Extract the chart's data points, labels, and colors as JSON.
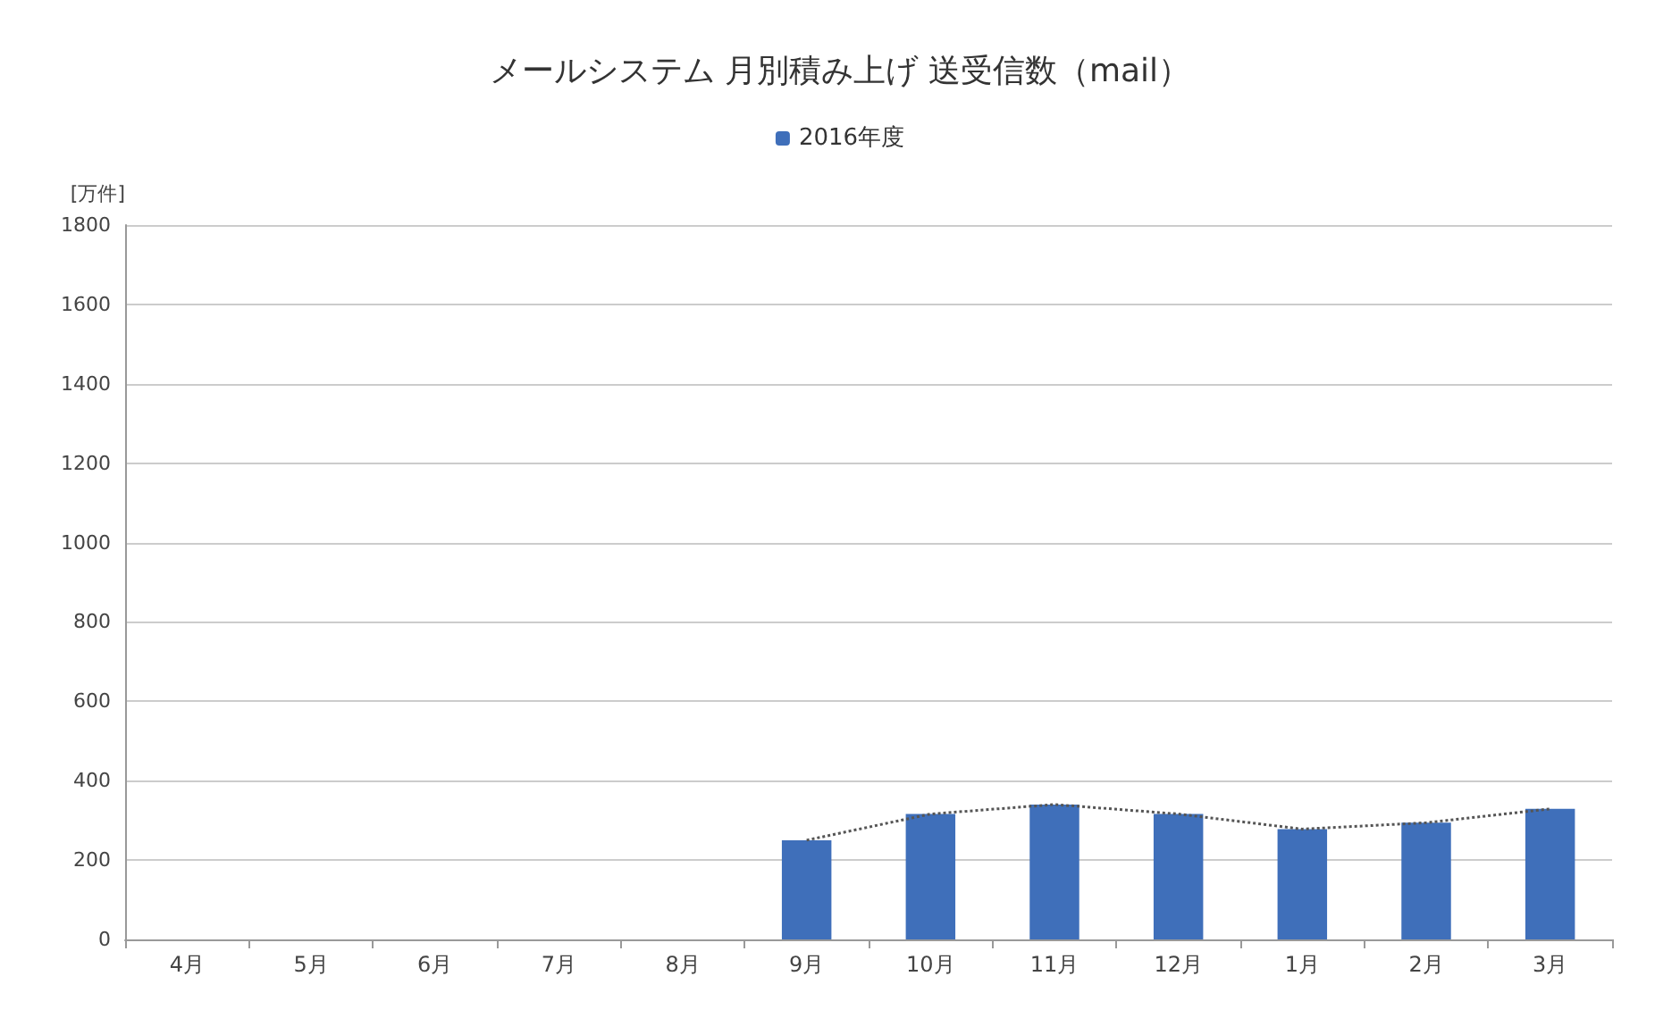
{
  "chart_data": {
    "type": "bar",
    "title": "メールシステム 月別積み上げ 送受信数（mail）",
    "ylabel": "[万件]",
    "categories": [
      "4月",
      "5月",
      "6月",
      "7月",
      "8月",
      "9月",
      "10月",
      "11月",
      "12月",
      "1月",
      "2月",
      "3月"
    ],
    "series": [
      {
        "name": "2016年度",
        "color": "#3f6fba",
        "values": [
          null,
          null,
          null,
          null,
          null,
          250,
          316,
          340,
          316,
          278,
          294,
          329
        ]
      },
      {
        "type": "line",
        "color": "#555555",
        "line_style": "dotted",
        "marker": "none",
        "values": [
          null,
          null,
          null,
          null,
          null,
          250,
          316,
          340,
          316,
          278,
          294,
          329
        ]
      }
    ],
    "ylim": [
      0,
      1800
    ],
    "yticks": [
      0,
      200,
      400,
      600,
      800,
      1000,
      1200,
      1400,
      1600,
      1800
    ],
    "grid": "y",
    "legend": "top"
  }
}
